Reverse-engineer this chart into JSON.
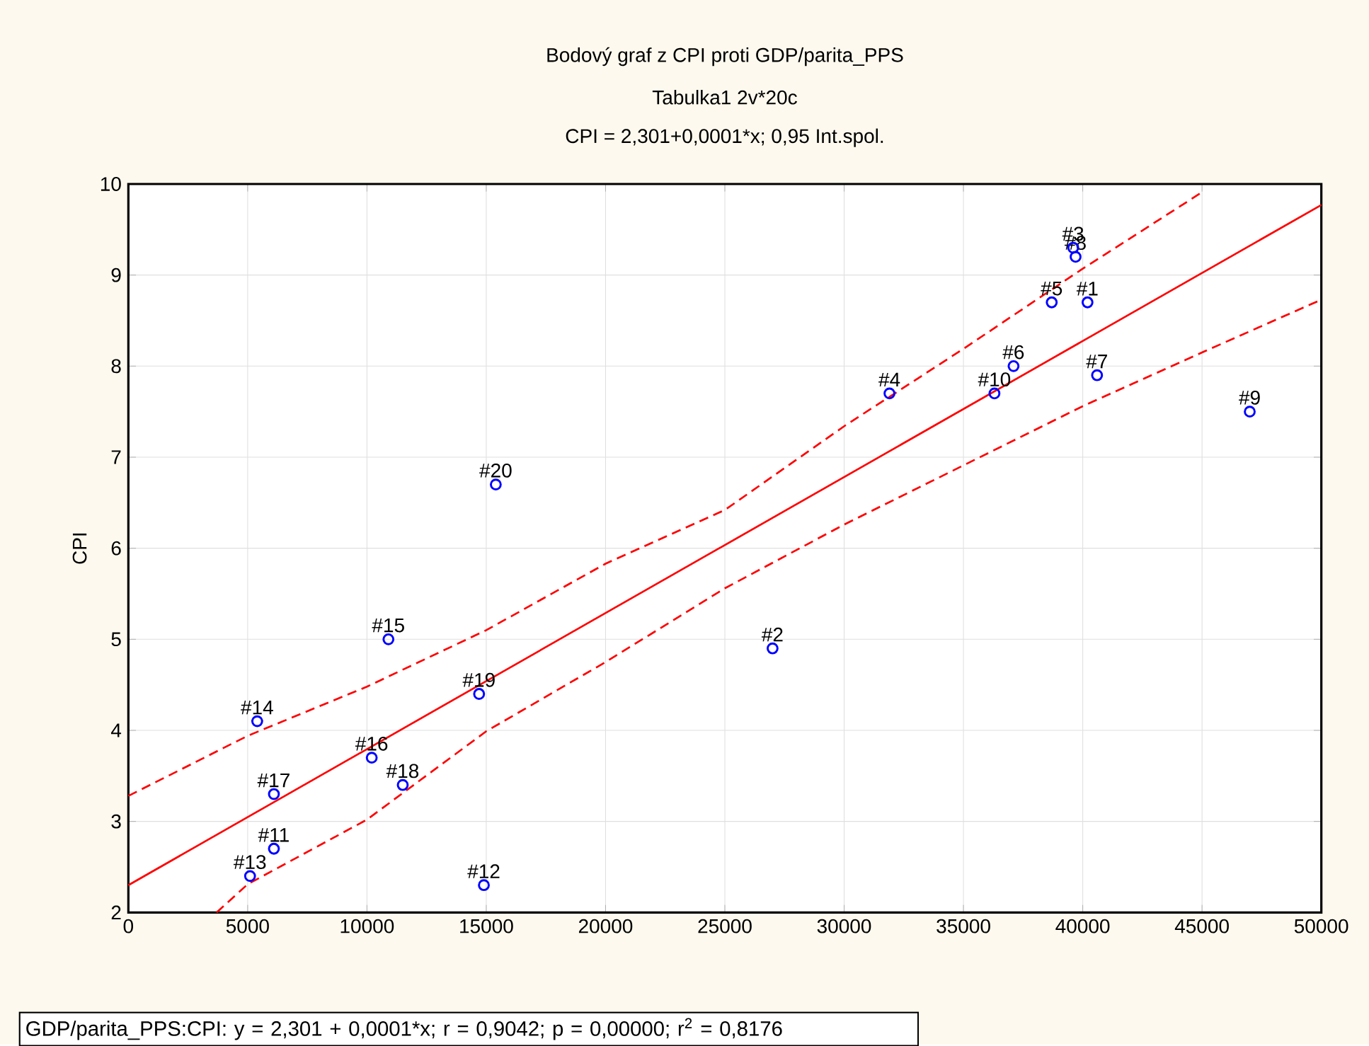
{
  "chart_data": {
    "type": "scatter",
    "title": "Bodový graf z CPI proti GDP/parita_PPS",
    "subtitle": "Tabulka1 2v*20c",
    "ylabel": "CPI",
    "annotations": [
      "CPI = 2,301+0,0001*x; 0,95 Int.spol.",
      "GDP/parita_PPS:CPI:   y = 2,301 + 0,0001*x;  r = 0,9042; p = 0,00000; r$^{2}$ = 0,8176",
      {
        "text": "#1",
        "x": 40200,
        "y": 8.7
      },
      {
        "text": "#2",
        "x": 27000,
        "y": 4.9
      },
      {
        "text": "#3",
        "x": 39600,
        "y": 9.3
      },
      {
        "text": "#4",
        "x": 31900,
        "y": 7.7
      },
      {
        "text": "#5",
        "x": 38700,
        "y": 8.7
      },
      {
        "text": "#6",
        "x": 37100,
        "y": 8.0
      },
      {
        "text": "#7",
        "x": 40600,
        "y": 7.9
      },
      {
        "text": "#8",
        "x": 39700,
        "y": 9.2
      },
      {
        "text": "#9",
        "x": 47000,
        "y": 7.5
      },
      {
        "text": "#10",
        "x": 36300,
        "y": 7.7
      },
      {
        "text": "#11",
        "x": 6100,
        "y": 2.7
      },
      {
        "text": "#12",
        "x": 14900,
        "y": 2.3
      },
      {
        "text": "#13",
        "x": 5100,
        "y": 2.4
      },
      {
        "text": "#14",
        "x": 5400,
        "y": 4.1
      },
      {
        "text": "#15",
        "x": 10900,
        "y": 5.0
      },
      {
        "text": "#16",
        "x": 10200,
        "y": 3.7
      },
      {
        "text": "#17",
        "x": 6100,
        "y": 3.3
      },
      {
        "text": "#18",
        "x": 11500,
        "y": 3.4
      },
      {
        "text": "#19",
        "x": 14700,
        "y": 4.4
      },
      {
        "text": "#20",
        "x": 15400,
        "y": 6.7
      }
    ],
    "xlim": [
      0,
      50000
    ],
    "xticks": [
      0,
      5000,
      10000,
      15000,
      20000,
      25000,
      30000,
      35000,
      40000,
      45000,
      50000
    ],
    "ylim": [
      2,
      10
    ],
    "yticks": [
      2,
      3,
      4,
      5,
      6,
      7,
      8,
      9,
      10
    ],
    "grid": true,
    "series": [
      {
        "color": "#0000ff",
        "marker": "circle",
        "x": [
          40200,
          27000,
          39600,
          31900,
          38700,
          37100,
          40600,
          39700,
          47000,
          36300,
          6100,
          14900,
          5100,
          5400,
          10900,
          10200,
          6100,
          11500,
          14700,
          15400
        ],
        "values": [
          8.7,
          4.9,
          9.3,
          7.7,
          8.7,
          8.0,
          7.9,
          9.2,
          7.5,
          7.7,
          2.7,
          2.3,
          2.4,
          4.1,
          5.0,
          3.7,
          3.3,
          3.4,
          4.4,
          6.7
        ]
      },
      {
        "type": "line",
        "color": "#ff0000",
        "line_style": "solid",
        "x": [
          0,
          50000
        ],
        "values": [
          2.3,
          9.77
        ]
      },
      {
        "type": "line",
        "color": "#ff0000",
        "line_style": "dashed",
        "x": [
          0,
          5000,
          10000,
          15000,
          20000,
          25000,
          30000,
          35000,
          40000,
          45000
        ],
        "values": [
          3.28,
          3.94,
          4.48,
          5.1,
          5.83,
          6.42,
          7.34,
          8.19,
          9.07,
          9.91
        ]
      },
      {
        "type": "line",
        "color": "#ff0000",
        "line_style": "dashed",
        "x": [
          3700,
          5000,
          10000,
          15000,
          20000,
          25000,
          30000,
          35000,
          40000,
          45000,
          50000
        ],
        "values": [
          2.0,
          2.31,
          3.02,
          3.99,
          4.75,
          5.56,
          6.26,
          6.91,
          7.56,
          8.15,
          8.73
        ]
      }
    ]
  }
}
